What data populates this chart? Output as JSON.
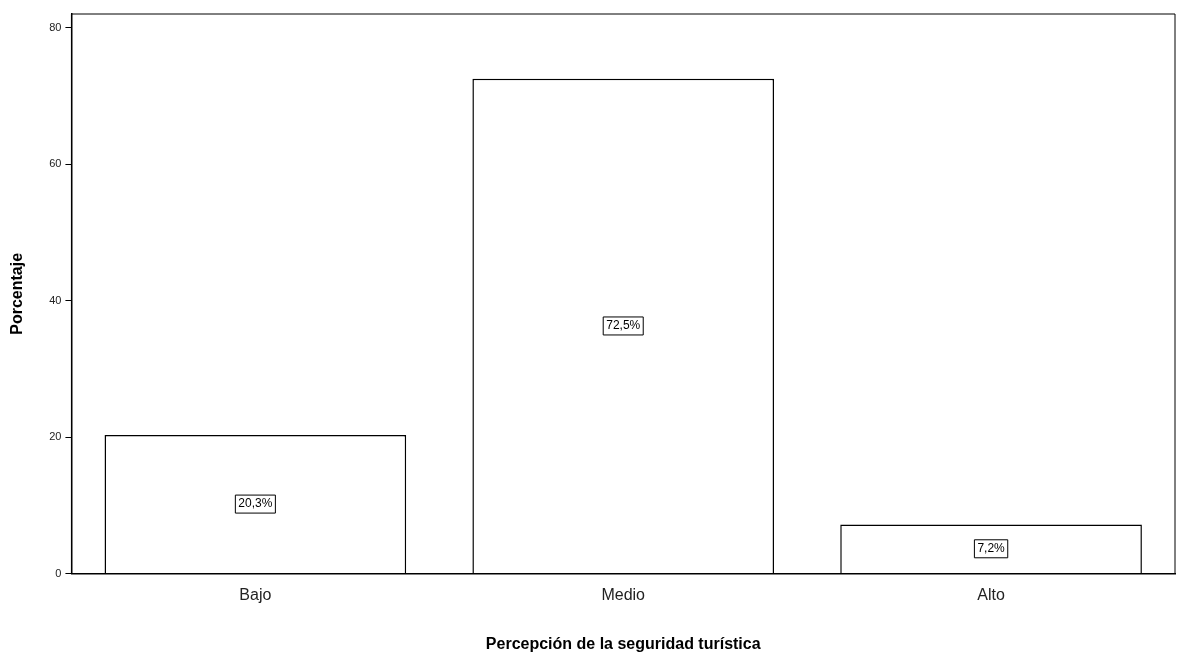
{
  "chart_data": {
    "type": "bar",
    "xlabel": "Percepción de la seguridad turística",
    "ylabel": "Porcentaje",
    "categories": [
      "Bajo",
      "Medio",
      "Alto"
    ],
    "values": [
      20.3,
      72.5,
      7.2
    ],
    "color": "#ffffff",
    "value_labels": [
      "20,3%",
      "72,5%",
      "7,2%"
    ],
    "ylim": [
      0,
      82
    ],
    "yticks": [
      0,
      20,
      40,
      60,
      80
    ],
    "grid": false
  }
}
